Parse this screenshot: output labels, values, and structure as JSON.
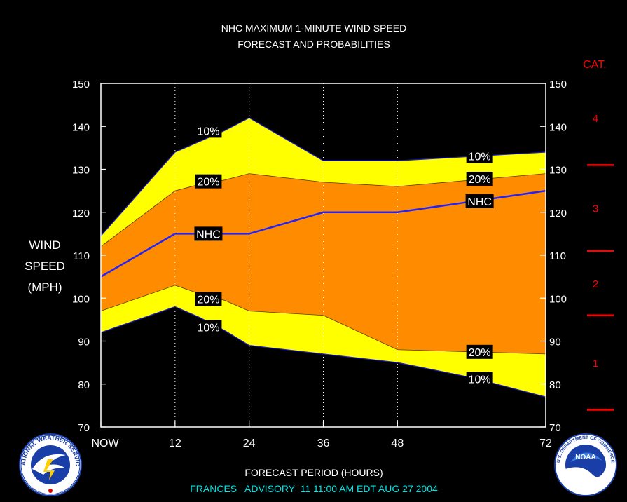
{
  "chart_data": {
    "type": "area",
    "title": "NHC MAXIMUM 1-MINUTE WIND SPEED",
    "subtitle": "FORECAST AND PROBABILITIES",
    "xlabel": "FORECAST PERIOD (HOURS)",
    "ylabel_lines": [
      "WIND",
      "SPEED",
      "(MPH)"
    ],
    "x_tick_labels": [
      {
        "x": 0,
        "label": "NOW"
      },
      {
        "x": 12,
        "label": "12"
      },
      {
        "x": 24,
        "label": "24"
      },
      {
        "x": 36,
        "label": "36"
      },
      {
        "x": 48,
        "label": "48"
      },
      {
        "x": 72,
        "label": "72"
      }
    ],
    "xlim": [
      0,
      72
    ],
    "ylim": [
      70,
      150
    ],
    "y_ticks": [
      70,
      80,
      90,
      100,
      110,
      120,
      130,
      140,
      150
    ],
    "grid_x": [
      12,
      24,
      36,
      48
    ],
    "series": [
      {
        "name": "10%",
        "role": "upper_outer",
        "color": "#ffff00",
        "x": [
          0,
          12,
          16,
          20,
          24,
          36,
          48,
          60,
          72
        ],
        "y": [
          114.5,
          134,
          136.5,
          139,
          142,
          132,
          132,
          133,
          134
        ]
      },
      {
        "name": "20%",
        "role": "upper_inner",
        "color": "#ff8c00",
        "x": [
          0,
          12,
          16,
          20,
          24,
          36,
          48,
          60,
          72
        ],
        "y": [
          112,
          125,
          126.5,
          127.5,
          129,
          127,
          126,
          127.5,
          129
        ]
      },
      {
        "name": "NHC",
        "role": "forecast",
        "color": "#2222ff",
        "x": [
          0,
          12,
          24,
          36,
          48,
          60,
          72
        ],
        "y": [
          105,
          115,
          115,
          120,
          120,
          122.5,
          125
        ]
      },
      {
        "name": "20%",
        "role": "lower_inner",
        "color": "#ff8c00",
        "x": [
          0,
          12,
          16,
          20,
          24,
          36,
          48,
          60,
          72
        ],
        "y": [
          97,
          103,
          101,
          99.5,
          97,
          96,
          88,
          87.5,
          87
        ]
      },
      {
        "name": "10%",
        "role": "lower_outer",
        "color": "#ffff00",
        "x": [
          0,
          12,
          16,
          20,
          24,
          36,
          48,
          60,
          72
        ],
        "y": [
          92,
          98,
          95.5,
          92.5,
          89,
          87,
          85,
          81.5,
          77
        ]
      }
    ],
    "annotations": [
      {
        "text": "10%",
        "x": 17.4,
        "y": 139
      },
      {
        "text": "20%",
        "x": 17.4,
        "y": 127.2
      },
      {
        "text": "NHC",
        "x": 17.4,
        "y": 115
      },
      {
        "text": "20%",
        "x": 17.4,
        "y": 99.8
      },
      {
        "text": "10%",
        "x": 17.4,
        "y": 93.3
      },
      {
        "text": "10%",
        "x": 61.3,
        "y": 133.1
      },
      {
        "text": "20%",
        "x": 61.3,
        "y": 127.8
      },
      {
        "text": "NHC",
        "x": 61.3,
        "y": 122.6
      },
      {
        "text": "20%",
        "x": 61.3,
        "y": 87.5
      },
      {
        "text": "10%",
        "x": 61.3,
        "y": 81.2
      }
    ],
    "category_scale": {
      "title": "CAT.",
      "color": "#ff0000",
      "boundaries": [
        74,
        96,
        111,
        131
      ],
      "labels": [
        {
          "text": "1",
          "y": 85
        },
        {
          "text": "2",
          "y": 103.5
        },
        {
          "text": "3",
          "y": 121
        },
        {
          "text": "4",
          "y": 142
        }
      ]
    }
  },
  "footer": {
    "advisory": "FRANCES   ADVISORY  11 11:00 AM EDT AUG 27 2004",
    "color": "#00e5e5"
  },
  "logos": {
    "left": {
      "name": "national-weather-service-seal",
      "text": "NATIONAL WEATHER SERVICE"
    },
    "right": {
      "name": "noaa-seal",
      "text": "NOAA",
      "ring_text": "U.S. DEPARTMENT OF COMMERCE"
    }
  }
}
